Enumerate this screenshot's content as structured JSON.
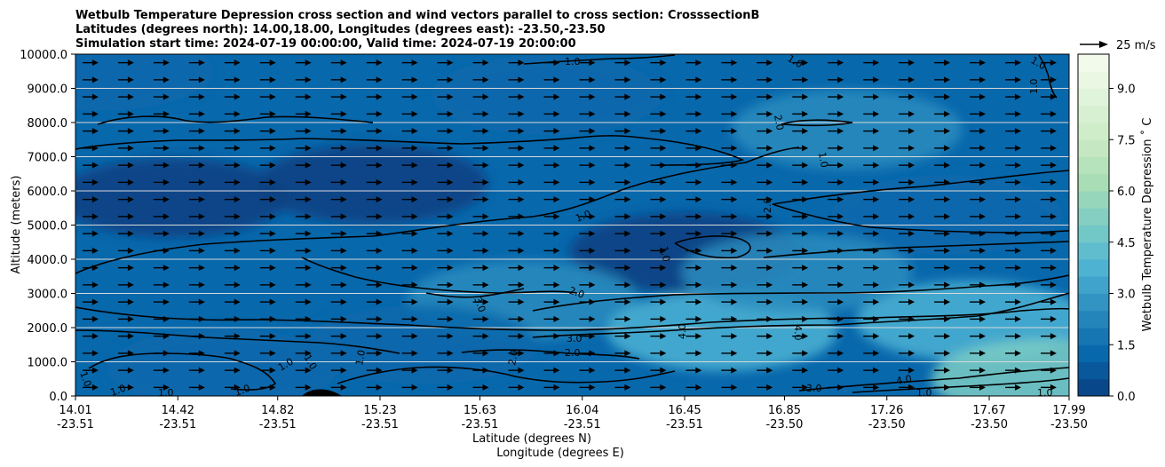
{
  "chart_data": {
    "type": "heatmap",
    "title_lines": [
      "Wetbulb Temperature Depression cross section and wind vectors parallel to cross section: CrosssectionB",
      "Latitudes (degrees north): 14.00,18.00, Longitudes (degrees east): -23.50,-23.50",
      "Simulation start time: 2024-07-19 00:00:00, Valid time: 2024-07-19 20:00:00"
    ],
    "ylabel": "Altitude (meters)",
    "xlabel_line1": "Latitude (degrees N)",
    "xlabel_line2": "Longitude (degrees E)",
    "ylim": [
      0,
      10000
    ],
    "yticks": [
      "0.0",
      "1000.0",
      "2000.0",
      "3000.0",
      "4000.0",
      "5000.0",
      "6000.0",
      "7000.0",
      "8000.0",
      "9000.0",
      "10000.0"
    ],
    "xlim": [
      14.01,
      17.99
    ],
    "xticks": [
      {
        "lat": "14.01",
        "lon": "-23.51"
      },
      {
        "lat": "14.42",
        "lon": "-23.51"
      },
      {
        "lat": "14.82",
        "lon": "-23.51"
      },
      {
        "lat": "15.23",
        "lon": "-23.51"
      },
      {
        "lat": "15.63",
        "lon": "-23.51"
      },
      {
        "lat": "16.04",
        "lon": "-23.51"
      },
      {
        "lat": "16.45",
        "lon": "-23.51"
      },
      {
        "lat": "16.85",
        "lon": "-23.50"
      },
      {
        "lat": "17.26",
        "lon": "-23.50"
      },
      {
        "lat": "17.67",
        "lon": "-23.50"
      },
      {
        "lat": "17.99",
        "lon": "-23.50"
      }
    ],
    "grid_y": true,
    "colorbar": {
      "label": "Wetbulb Temperature Depression ˚ C",
      "range": [
        0,
        10
      ],
      "ticks": [
        "0.0",
        "1.5",
        "3.0",
        "4.5",
        "6.0",
        "7.5",
        "9.0"
      ],
      "levels": 20,
      "colormap": "GnBu_r"
    },
    "quiver_key": {
      "label": "25 m/s",
      "speed": 25
    },
    "wind": {
      "direction": "parallel",
      "speed_m_s": 14
    },
    "contour_labels": [
      "1.0",
      "2.0",
      "3.0",
      "4.0"
    ],
    "field_samples_C": [
      {
        "lat": 14.1,
        "alt": 9500,
        "value": 1.0
      },
      {
        "lat": 15.2,
        "alt": 6200,
        "value": 0.4
      },
      {
        "lat": 14.4,
        "alt": 5800,
        "value": 0.5
      },
      {
        "lat": 16.45,
        "alt": 4200,
        "value": 0.6
      },
      {
        "lat": 15.8,
        "alt": 2800,
        "value": 3.0
      },
      {
        "lat": 16.6,
        "alt": 1900,
        "value": 4.0
      },
      {
        "lat": 17.6,
        "alt": 2200,
        "value": 4.2
      },
      {
        "lat": 17.9,
        "alt": 500,
        "value": 5.5
      },
      {
        "lat": 17.1,
        "alt": 7800,
        "value": 2.0
      },
      {
        "lat": 17.5,
        "alt": 5300,
        "value": 1.6
      },
      {
        "lat": 14.6,
        "alt": 800,
        "value": 0.9
      },
      {
        "lat": 15.4,
        "alt": 1500,
        "value": 1.2
      },
      {
        "lat": 16.9,
        "alt": 3600,
        "value": 2.4
      },
      {
        "lat": 15.9,
        "alt": 8800,
        "value": 1.5
      }
    ],
    "colors": {
      "dark": "#084081",
      "mid": "#2b8cbe",
      "light": "#7bccc4",
      "pale": "#f7fcf0"
    }
  }
}
